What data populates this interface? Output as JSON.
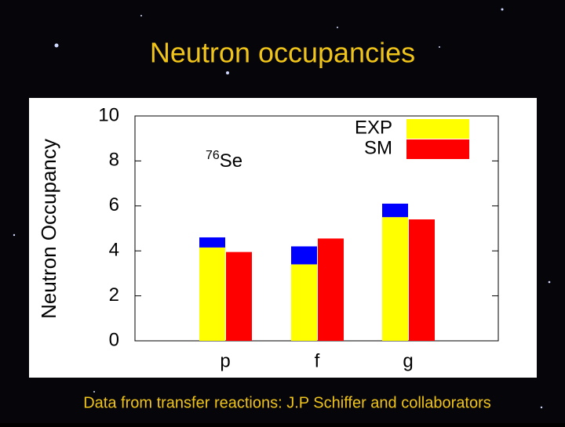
{
  "title": "Neutron occupancies",
  "footer": "Data from transfer reactions: J.P Schiffer and collaborators",
  "chart_data": {
    "type": "bar",
    "ylabel": "Neutron Occupancy",
    "annotation": {
      "superscript": "76",
      "text": "Se"
    },
    "categories": [
      "p",
      "f",
      "g"
    ],
    "series": [
      {
        "name": "EXP",
        "color": "#ffff00",
        "values": [
          4.15,
          3.4,
          5.5
        ],
        "error": [
          0.45,
          0.8,
          0.6
        ],
        "error_color": "#0000ff"
      },
      {
        "name": "SM",
        "color": "#ff0000",
        "values": [
          3.95,
          4.55,
          5.4
        ]
      }
    ],
    "ylim": [
      0,
      10
    ],
    "yticks": [
      0,
      2,
      4,
      6,
      8,
      10
    ],
    "legend": "upper right"
  }
}
